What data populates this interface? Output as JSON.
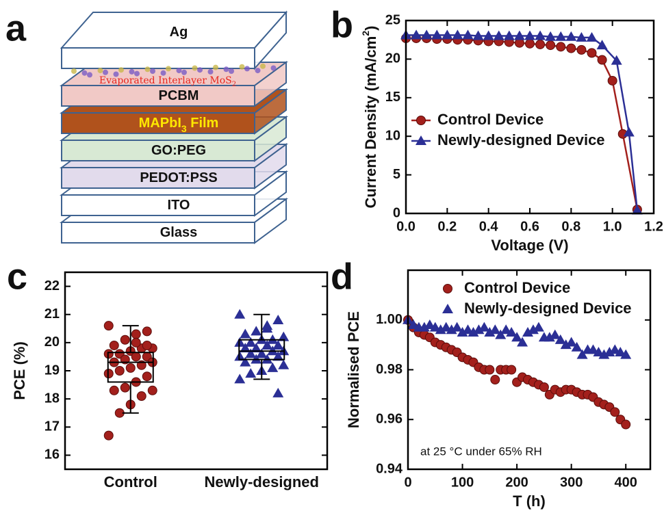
{
  "diagram": {
    "panel": "a",
    "interlayer": [
      "Evaporated Interlayer MoS",
      "2"
    ],
    "layers": [
      {
        "label": "Ag",
        "color": "#ffffff",
        "text_color": "#111111"
      },
      {
        "label": "PCBM",
        "color": "#f1c9c6",
        "text_color": "#111111"
      },
      {
        "label": "MAPbI",
        "sub": "3",
        "suffix": " Film",
        "color": "#b0521c",
        "text_color": "#ffe800"
      },
      {
        "label": "GO:PEG",
        "color": "#d8e9d4",
        "text_color": "#111111"
      },
      {
        "label": "PEDOT:PSS",
        "color": "#e2dbec",
        "text_color": "#111111"
      },
      {
        "label": "ITO",
        "color": "#ffffff",
        "text_color": "#111111"
      },
      {
        "label": "Glass",
        "color": "#ffffff",
        "text_color": "#111111"
      }
    ]
  },
  "chart_data": [
    {
      "panel": "b",
      "type": "line",
      "xlabel": "Voltage (V)",
      "ylabel": [
        "Current Density (mA/cm",
        "2",
        ")"
      ],
      "xlim": [
        0,
        1.2
      ],
      "xticks": [
        {
          "value": 0,
          "label": "0.0"
        },
        0.2,
        0.4,
        0.6,
        0.8,
        {
          "value": 1,
          "label": "1.0"
        },
        1.2
      ],
      "ylim": [
        0,
        25
      ],
      "yticks": [
        0,
        5,
        10,
        15,
        20,
        25
      ],
      "legend": "left",
      "series": [
        {
          "name": "Control Device",
          "color": "#a3201c",
          "marker": "circle",
          "x": [
            0,
            0.05,
            0.1,
            0.15,
            0.2,
            0.25,
            0.3,
            0.35,
            0.4,
            0.45,
            0.5,
            0.55,
            0.6,
            0.65,
            0.7,
            0.75,
            0.8,
            0.85,
            0.9,
            0.95,
            1.0,
            1.05,
            1.12
          ],
          "values": [
            22.7,
            22.7,
            22.7,
            22.6,
            22.6,
            22.5,
            22.5,
            22.4,
            22.3,
            22.3,
            22.2,
            22.1,
            22.0,
            21.9,
            21.8,
            21.6,
            21.4,
            21.2,
            20.8,
            19.9,
            17.2,
            10.3,
            0.5
          ]
        },
        {
          "name": "Newly-designed Device",
          "color": "#2b2f95",
          "marker": "triangle",
          "x": [
            0,
            0.05,
            0.1,
            0.15,
            0.2,
            0.25,
            0.3,
            0.35,
            0.4,
            0.45,
            0.5,
            0.55,
            0.6,
            0.65,
            0.7,
            0.75,
            0.8,
            0.85,
            0.9,
            0.95,
            1.02,
            1.08,
            1.12
          ],
          "values": [
            23.1,
            23.1,
            23.1,
            23.1,
            23.1,
            23.1,
            23.1,
            23.0,
            23.0,
            23.0,
            23.0,
            23.0,
            23.0,
            23.0,
            22.9,
            22.9,
            22.9,
            22.8,
            22.8,
            21.8,
            19.8,
            10.5,
            0.4
          ]
        }
      ]
    },
    {
      "panel": "c",
      "type": "box",
      "ylabel": "PCE (%)",
      "categories": [
        "Control",
        "Newly-designed"
      ],
      "ylim": [
        15.5,
        22.5
      ],
      "yticks": [
        16,
        17,
        18,
        19,
        20,
        21,
        22
      ],
      "groups": [
        {
          "color": "#a3201c",
          "marker": "circle",
          "box": {
            "min": 17.5,
            "q1": 18.6,
            "median": 19.3,
            "q3": 19.65,
            "max": 20.6
          },
          "values": [
            20.6,
            20.4,
            20.3,
            20.1,
            19.9,
            19.8,
            19.8,
            19.7,
            19.6,
            19.6,
            19.5,
            19.5,
            19.4,
            19.3,
            19.3,
            19.2,
            19.1,
            19.0,
            18.9,
            18.8,
            18.6,
            18.4,
            18.3,
            18.3,
            18.1,
            17.8,
            17.5,
            16.7,
            19.9,
            20.0
          ]
        },
        {
          "color": "#2b2f95",
          "marker": "triangle",
          "box": {
            "min": 18.7,
            "q1": 19.4,
            "median": 19.7,
            "q3": 20.1,
            "max": 21.0
          },
          "values": [
            21.0,
            20.8,
            20.5,
            20.4,
            20.3,
            20.2,
            20.1,
            20.1,
            20.0,
            20.0,
            19.9,
            19.9,
            19.8,
            19.8,
            19.7,
            19.7,
            19.6,
            19.6,
            19.5,
            19.5,
            19.4,
            19.4,
            19.3,
            19.2,
            19.1,
            19.0,
            18.9,
            18.7,
            18.2,
            20.6
          ]
        }
      ]
    },
    {
      "panel": "d",
      "type": "scatter",
      "xlabel": "T (h)",
      "ylabel": "Normalised PCE",
      "annotation": "at 25 °C under 65% RH",
      "xlim": [
        0,
        445
      ],
      "xticks": [
        0,
        100,
        200,
        300,
        400
      ],
      "ylim": [
        0.94,
        1.02
      ],
      "yticks": [
        0.94,
        0.96,
        0.98,
        {
          "value": 1,
          "label": "1.00"
        }
      ],
      "legend": "top",
      "series": [
        {
          "name": "Control Device",
          "color": "#a3201c",
          "marker": "circle",
          "x": [
            0,
            10,
            20,
            30,
            40,
            50,
            60,
            70,
            80,
            90,
            100,
            110,
            120,
            130,
            140,
            150,
            160,
            170,
            180,
            190,
            200,
            210,
            220,
            230,
            240,
            250,
            260,
            270,
            280,
            290,
            300,
            310,
            320,
            330,
            340,
            350,
            360,
            370,
            380,
            390,
            400
          ],
          "values": [
            1.0,
            0.997,
            0.995,
            0.994,
            0.993,
            0.991,
            0.99,
            0.989,
            0.988,
            0.987,
            0.985,
            0.984,
            0.983,
            0.981,
            0.98,
            0.98,
            0.976,
            0.98,
            0.98,
            0.98,
            0.975,
            0.977,
            0.976,
            0.975,
            0.974,
            0.973,
            0.97,
            0.972,
            0.971,
            0.972,
            0.972,
            0.971,
            0.97,
            0.97,
            0.969,
            0.967,
            0.966,
            0.965,
            0.963,
            0.96,
            0.958
          ]
        },
        {
          "name": "Newly-designed Device",
          "color": "#2b2f95",
          "marker": "triangle",
          "x": [
            0,
            10,
            20,
            30,
            40,
            50,
            60,
            70,
            80,
            90,
            100,
            110,
            120,
            130,
            140,
            150,
            160,
            170,
            180,
            190,
            200,
            210,
            220,
            230,
            240,
            250,
            260,
            270,
            280,
            290,
            300,
            310,
            320,
            330,
            340,
            350,
            360,
            370,
            380,
            390,
            400
          ],
          "values": [
            1.0,
            0.998,
            0.997,
            0.997,
            0.998,
            0.997,
            0.996,
            0.997,
            0.996,
            0.997,
            0.995,
            0.996,
            0.995,
            0.996,
            0.997,
            0.995,
            0.996,
            0.994,
            0.996,
            0.995,
            0.993,
            0.991,
            0.995,
            0.996,
            0.997,
            0.993,
            0.993,
            0.994,
            0.992,
            0.99,
            0.991,
            0.989,
            0.986,
            0.988,
            0.988,
            0.987,
            0.986,
            0.987,
            0.988,
            0.987,
            0.986
          ]
        }
      ]
    }
  ]
}
